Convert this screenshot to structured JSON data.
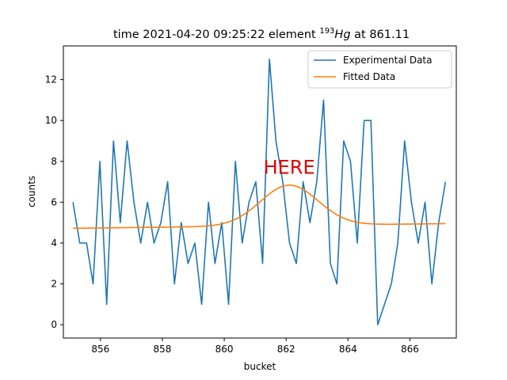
{
  "chart_data": {
    "type": "line",
    "title": {
      "prefix": "time 2021-04-20 09:25:22 element ",
      "isotope_mass": "193",
      "element_symbol": "Hg",
      "suffix": " at 861.11"
    },
    "xlabel": "bucket",
    "ylabel": "counts",
    "xlim": [
      854.8,
      867.5
    ],
    "ylim": [
      -0.65,
      13.65
    ],
    "x_ticks": [
      856,
      858,
      860,
      862,
      864,
      866
    ],
    "y_ticks": [
      0,
      2,
      4,
      6,
      8,
      10,
      12
    ],
    "grid": false,
    "legend_position": "top-right",
    "annotation": {
      "text": "HERE",
      "x": 862.1,
      "y": 7.4,
      "color": "#e00000"
    },
    "series": [
      {
        "name": "Experimental Data",
        "color": "#1f77b4",
        "x": [
          855.11,
          855.33,
          855.55,
          855.76,
          855.98,
          856.2,
          856.42,
          856.64,
          856.86,
          857.08,
          857.3,
          857.52,
          857.73,
          857.95,
          858.17,
          858.39,
          858.61,
          858.83,
          859.05,
          859.27,
          859.49,
          859.7,
          859.92,
          860.14,
          860.36,
          860.58,
          860.8,
          861.02,
          861.24,
          861.46,
          861.67,
          861.89,
          862.11,
          862.33,
          862.55,
          862.77,
          862.99,
          863.21,
          863.43,
          863.64,
          863.86,
          864.08,
          864.3,
          864.52,
          864.74,
          864.96,
          865.18,
          865.4,
          865.61,
          865.83,
          866.05,
          866.27,
          866.49,
          866.71,
          866.93,
          867.15
        ],
        "y": [
          6,
          4,
          4,
          2,
          8,
          1,
          9,
          5,
          9,
          6,
          4,
          6,
          4,
          5,
          7,
          2,
          5,
          3,
          4,
          1,
          6,
          3,
          5,
          1,
          8,
          4,
          6,
          7,
          3,
          13,
          9,
          7,
          4,
          3,
          7,
          5,
          7,
          11,
          3,
          2,
          9,
          8,
          4,
          10,
          10,
          0,
          1,
          2,
          4,
          9,
          6,
          4,
          6,
          2,
          5,
          7
        ]
      },
      {
        "name": "Fitted Data",
        "color": "#ff7f0e",
        "model": "gaussian_plus_linear",
        "params": {
          "amplitude": 1.98,
          "center": 862.1,
          "sigma": 0.93,
          "intercept_at_855": 4.72,
          "slope": 0.019
        },
        "x_range": [
          855.11,
          867.15
        ]
      }
    ]
  }
}
